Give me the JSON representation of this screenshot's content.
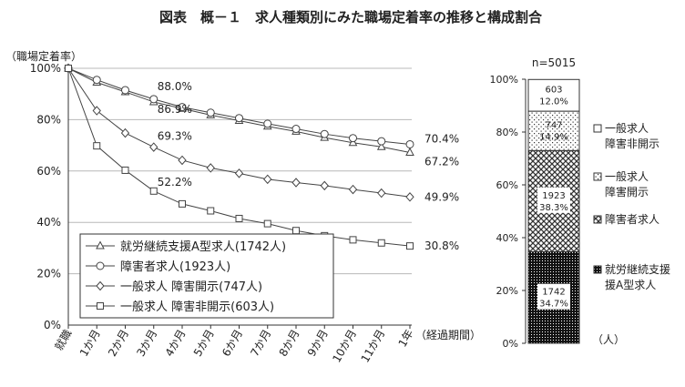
{
  "title": "図表　概－１　求人種類別にみた職場定着率の推移と構成割合",
  "chart_data": [
    {
      "type": "line",
      "ylabel": "（職場定着率）",
      "xlabel": "（経過期間）",
      "ylim": [
        0,
        100
      ],
      "y_ticks": [
        "0%",
        "20%",
        "40%",
        "60%",
        "80%",
        "100%"
      ],
      "categories": [
        "就職",
        "1か月",
        "2か月",
        "3か月",
        "4か月",
        "5か月",
        "6か月",
        "7か月",
        "8か月",
        "9か月",
        "10か月",
        "11か月",
        "1年"
      ],
      "series": [
        {
          "name": "就労継続支援A型求人(1742人)",
          "marker": "triangle",
          "values": [
            100,
            94.5,
            90.8,
            86.9,
            84.3,
            81.8,
            79.6,
            77.4,
            75.4,
            73.0,
            71.0,
            69.4,
            67.2
          ],
          "annotations": [
            {
              "index": 3,
              "label": "86.9%"
            }
          ],
          "end_label": "67.2%"
        },
        {
          "name": "障害者求人(1923人)",
          "marker": "circle",
          "values": [
            100,
            95.5,
            91.5,
            88.0,
            84.9,
            82.7,
            80.6,
            78.4,
            76.4,
            74.4,
            72.8,
            71.6,
            70.4
          ],
          "annotations": [
            {
              "index": 3,
              "label": "88.0%"
            }
          ],
          "end_label": "70.4%"
        },
        {
          "name": "一般求人 障害開示(747人)",
          "marker": "diamond",
          "values": [
            100,
            83.5,
            74.8,
            69.3,
            64.2,
            61.2,
            59.1,
            56.8,
            55.5,
            54.3,
            52.8,
            51.4,
            49.9
          ],
          "annotations": [
            {
              "index": 3,
              "label": "69.3%"
            }
          ],
          "end_label": "49.9%"
        },
        {
          "name": "一般求人 障害非開示(603人)",
          "marker": "square",
          "values": [
            100,
            69.8,
            60.3,
            52.2,
            47.2,
            44.5,
            41.5,
            39.5,
            36.8,
            34.8,
            33.2,
            32.0,
            30.8
          ],
          "annotations": [
            {
              "index": 3,
              "label": "52.2%"
            }
          ],
          "end_label": "30.8%"
        }
      ]
    },
    {
      "type": "bar",
      "stacked": true,
      "title": "n=5015",
      "ylim": [
        0,
        100
      ],
      "y_ticks": [
        "0%",
        "20%",
        "40%",
        "60%",
        "80%",
        "100%"
      ],
      "unit_label": "（人）",
      "segments": [
        {
          "name": "就労継続支援A型求人",
          "count": "1742",
          "percent": 34.7,
          "percent_label": "34.7%",
          "pattern": "dots-dark"
        },
        {
          "name": "障害者求人",
          "count": "1923",
          "percent": 38.3,
          "percent_label": "38.3%",
          "pattern": "cross-hatch"
        },
        {
          "name": "一般求人 障害開示",
          "count": "747",
          "percent": 14.9,
          "percent_label": "14.9%",
          "pattern": "dots-light"
        },
        {
          "name": "一般求人 障害非開示",
          "count": "603",
          "percent": 12.0,
          "percent_label": "12.0%",
          "pattern": "white"
        }
      ],
      "legend": [
        {
          "line1": "一般求人",
          "line2": "障害非開示"
        },
        {
          "line1": "一般求人",
          "line2": "障害開示"
        },
        {
          "line1": "障害者求人",
          "line2": ""
        },
        {
          "line1": "就労継続支援",
          "line2": "援A型求人"
        }
      ]
    }
  ]
}
